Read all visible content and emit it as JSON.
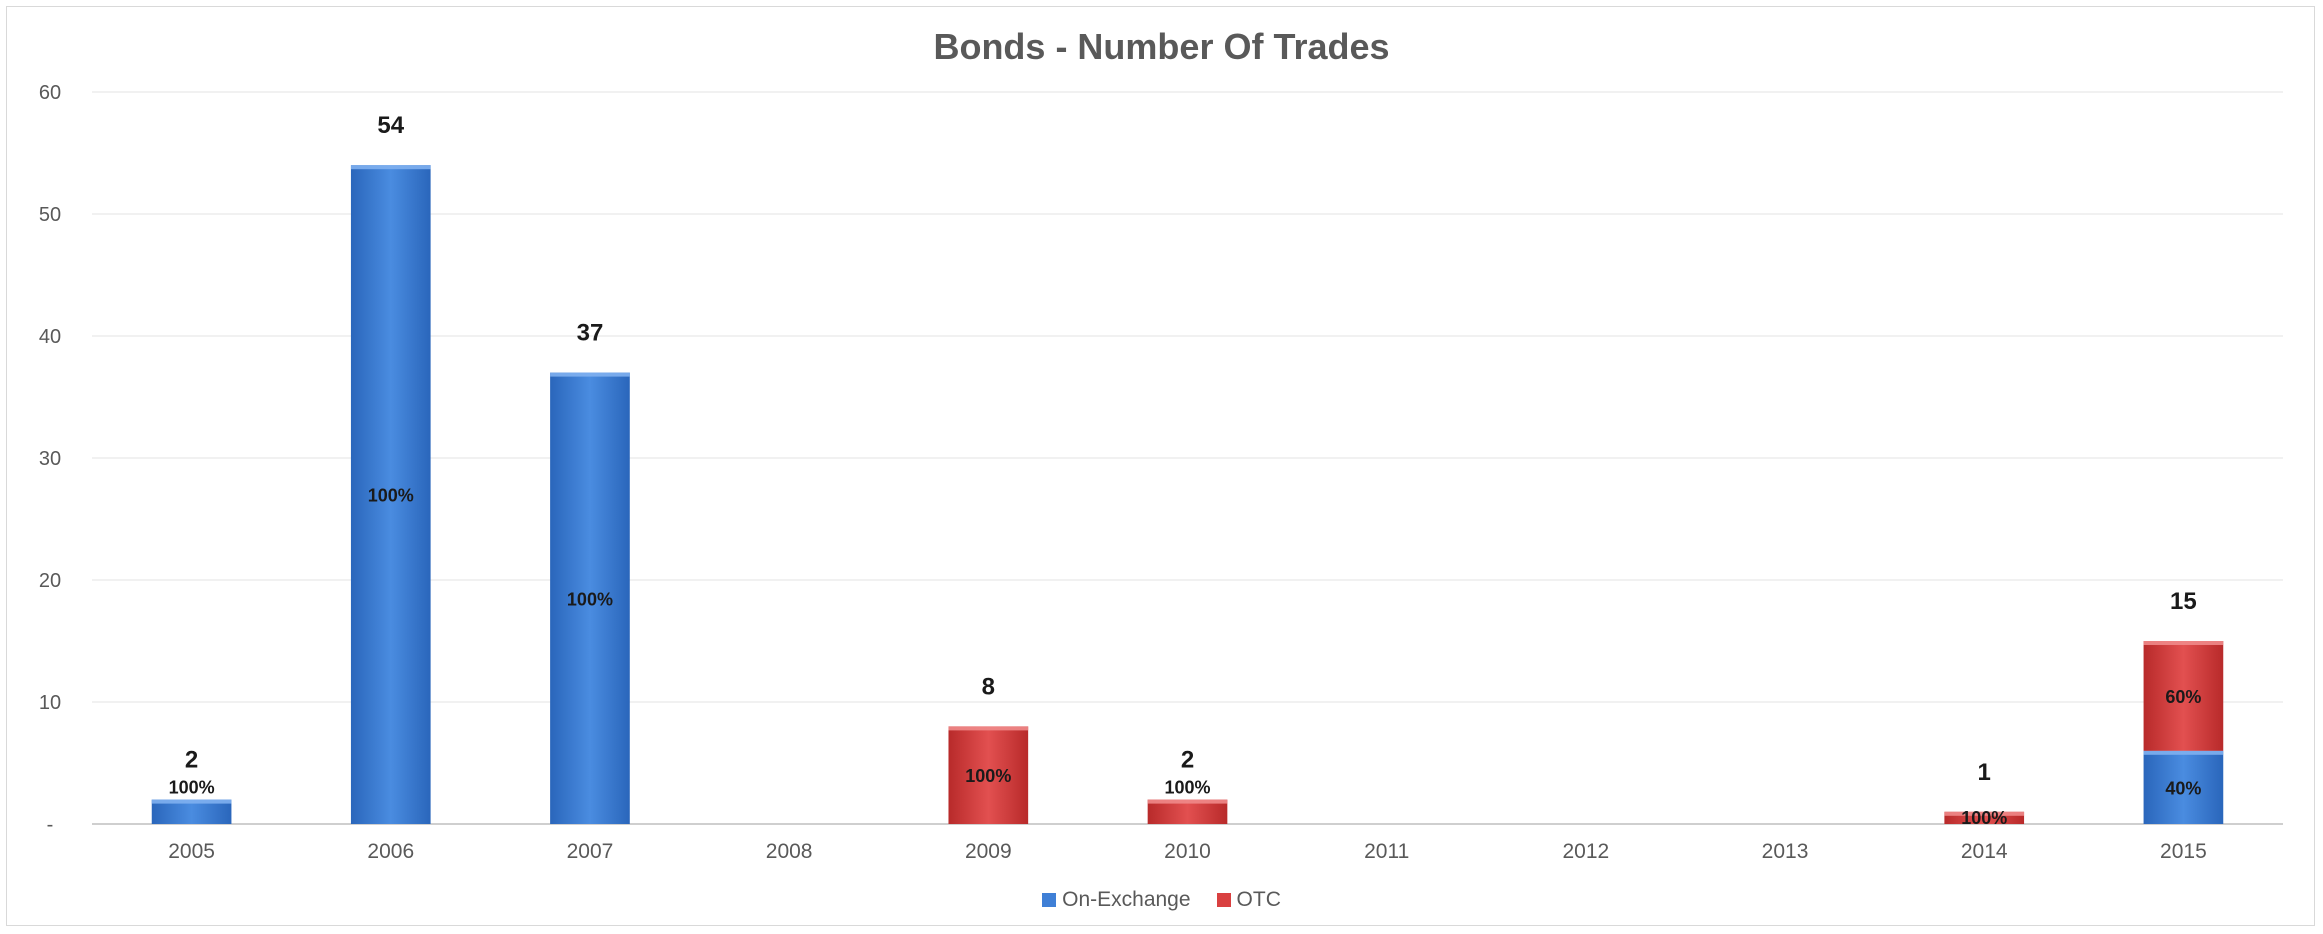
{
  "chart_data": {
    "type": "bar",
    "stacked": true,
    "title": "Bonds - Number Of Trades",
    "xlabel": "",
    "ylabel": "",
    "ylim": [
      0,
      60
    ],
    "yticks": [
      0,
      10,
      20,
      30,
      40,
      50,
      60
    ],
    "ytick_labels": [
      "-",
      "10",
      "20",
      "30",
      "40",
      "50",
      "60"
    ],
    "grid": true,
    "legend_position": "bottom",
    "categories": [
      "2005",
      "2006",
      "2007",
      "2008",
      "2009",
      "2010",
      "2011",
      "2012",
      "2013",
      "2014",
      "2015"
    ],
    "series": [
      {
        "name": "On-Exchange",
        "color": "#3f7fd6",
        "values": [
          2,
          54,
          37,
          0,
          0,
          0,
          0,
          0,
          0,
          0,
          6
        ],
        "labels": [
          "100%",
          "100%",
          "100%",
          "",
          "",
          "",
          "",
          "",
          "",
          "",
          "40%"
        ]
      },
      {
        "name": "OTC",
        "color": "#d94040",
        "values": [
          0,
          0,
          0,
          0,
          8,
          2,
          0,
          0,
          0,
          1,
          9
        ],
        "labels": [
          "",
          "",
          "",
          "",
          "100%",
          "100%",
          "",
          "",
          "",
          "100%",
          "60%"
        ]
      }
    ],
    "totals": [
      "2",
      "54",
      "37",
      "",
      "8",
      "2",
      "",
      "",
      "",
      "1",
      "15"
    ]
  }
}
